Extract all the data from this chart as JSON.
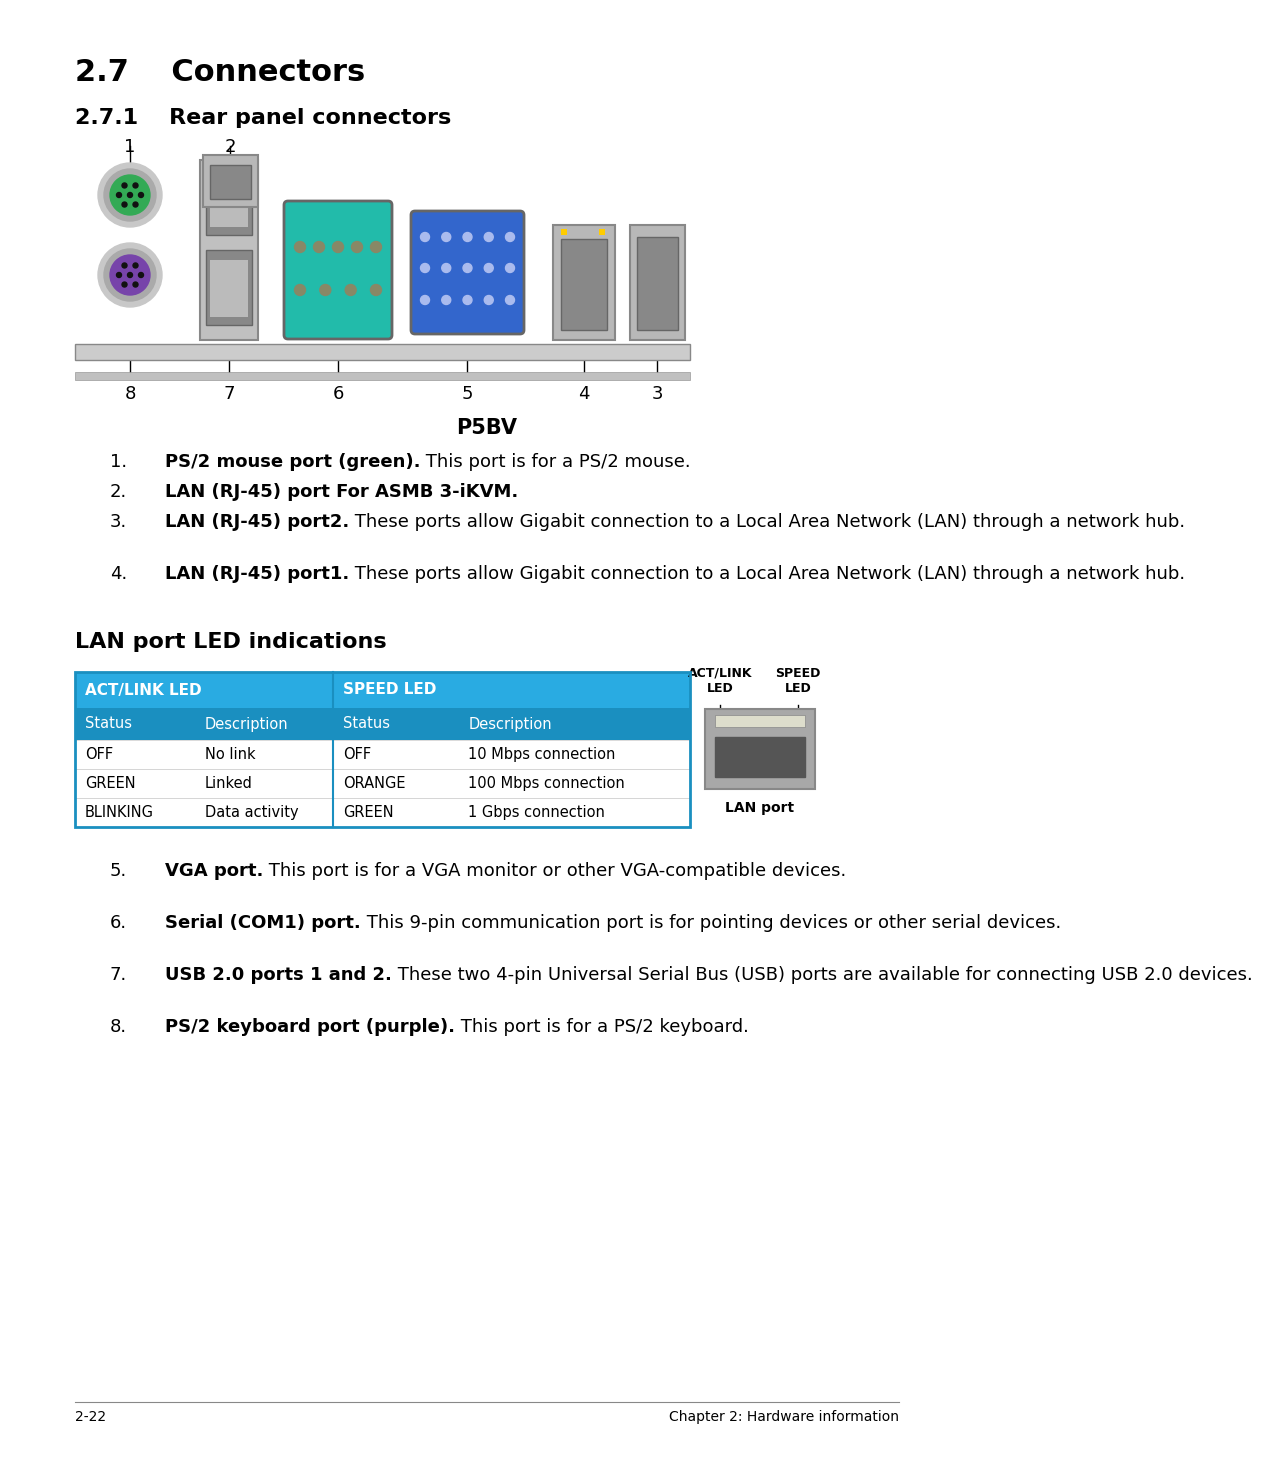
{
  "title_main_num": "2.7",
  "title_main_text": "Connectors",
  "title_sub_num": "2.7.1",
  "title_sub_text": "Rear panel connectors",
  "center_label": "P5BV",
  "lan_section_title": "LAN port LED indications",
  "table_header1": [
    "ACT/LINK LED",
    "SPEED LED"
  ],
  "table_header2": [
    "Status",
    "Description",
    "Status",
    "Description"
  ],
  "table_rows": [
    [
      "OFF",
      "No link",
      "OFF",
      "10 Mbps connection"
    ],
    [
      "GREEN",
      "Linked",
      "ORANGE",
      "100 Mbps connection"
    ],
    [
      "BLINKING",
      "Data activity",
      "GREEN",
      "1 Gbps connection"
    ]
  ],
  "lan_port_label": "LAN port",
  "items_1_4": [
    {
      "num": "1.",
      "bold": "PS/2 mouse port (green).",
      "rest": " This port is for a PS/2 mouse.",
      "lines": 1
    },
    {
      "num": "2.",
      "bold": "LAN (RJ-45) port For ASMB 3-iKVM.",
      "rest": "",
      "lines": 1
    },
    {
      "num": "3.",
      "bold": "LAN (RJ-45) port2.",
      "rest": " These ports allow Gigabit connection to a Local Area Network (LAN) through a network hub.",
      "lines": 2
    },
    {
      "num": "4.",
      "bold": "LAN (RJ-45) port1.",
      "rest": " These ports allow Gigabit connection to a Local Area Network (LAN) through a network hub.",
      "lines": 2
    }
  ],
  "items_5_8": [
    {
      "num": "5.",
      "bold": "VGA port.",
      "rest": " This port is for a VGA monitor or other VGA-compatible devices.",
      "lines": 1
    },
    {
      "num": "6.",
      "bold": "Serial (COM1) port.",
      "rest": " This 9-pin communication port is for pointing devices or other serial devices.",
      "lines": 2
    },
    {
      "num": "7.",
      "bold": "USB 2.0 ports 1 and 2.",
      "rest": " These two 4-pin Universal Serial Bus (USB) ports are available for connecting USB 2.0 devices.",
      "lines": 2
    },
    {
      "num": "8.",
      "bold": "PS/2 keyboard port (purple).",
      "rest": " This port is for a PS/2 keyboard.",
      "lines": 1
    }
  ],
  "footer_left": "2-22",
  "footer_right": "Chapter 2: Hardware information",
  "bg_color": "#ffffff",
  "header_blue": "#29abe2",
  "header_blue2": "#1a8fc0",
  "table_border": "#1a8fc0",
  "text_color": "#000000"
}
